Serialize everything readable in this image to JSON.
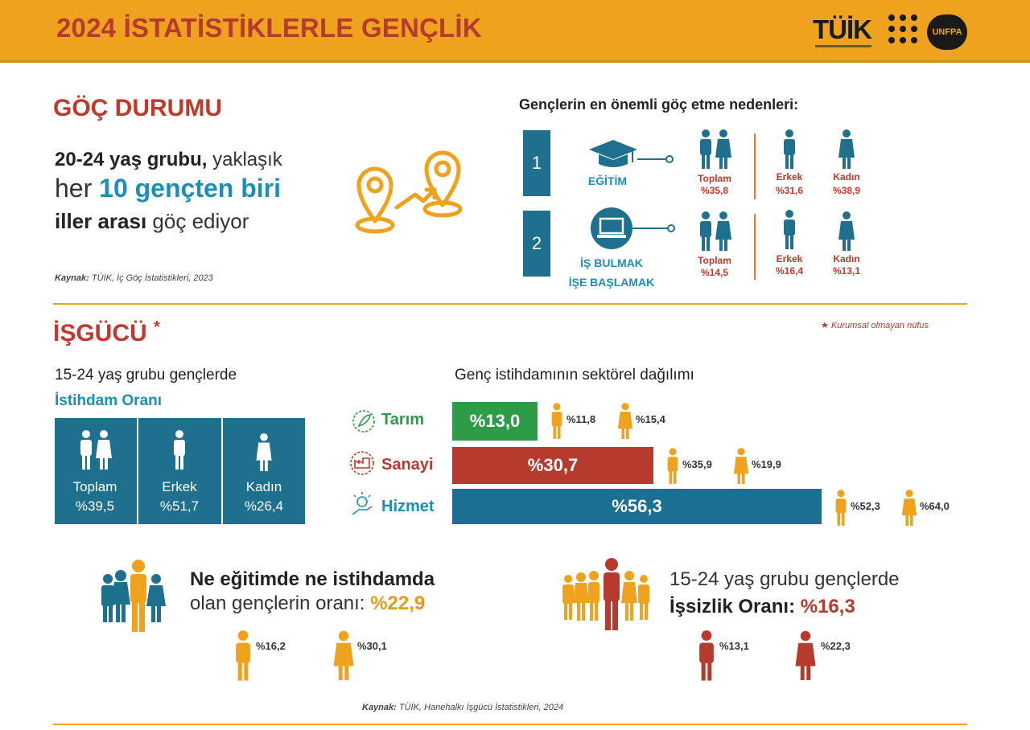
{
  "header": {
    "title": "2024 İSTATİSTİKLERLE GENÇLİK",
    "logo_tuik": "TÜİK",
    "logo_unfpa": "UNFPA"
  },
  "colors": {
    "header_bg": "#eea21e",
    "title_red": "#c0392b",
    "accent_blue": "#1f6f8f",
    "highlight_blue": "#1b8fb8",
    "bar_green": "#2e9b46",
    "bar_red": "#b73a2e",
    "bar_blue": "#1b6f92",
    "orange": "#e69a1c"
  },
  "migration": {
    "title": "GÖÇ DURUMU",
    "line1_bold": "20-24 yaş grubu,",
    "line1_rest": " yaklaşık",
    "line2_pre": "her ",
    "line2_bold": "10 gençten biri",
    "line3_bold": "iller arası",
    "line3_rest": " göç ediyor",
    "source_label": "Kaynak:",
    "source_text": " TÜİK, İç Göç İstatistikleri, 2023",
    "reasons_title": "Gençlerin en önemli göç etme nedenleri:",
    "reasons": [
      {
        "num": "1",
        "label_line1": "EĞİTİM",
        "label_line2": "",
        "total_label": "Toplam",
        "total_value": "%35,8",
        "male_label": "Erkek",
        "male_value": "%31,6",
        "female_label": "Kadın",
        "female_value": "%38,9"
      },
      {
        "num": "2",
        "label_line1": "İŞ BULMAK",
        "label_line2": "İŞE BAŞLAMAK",
        "total_label": "Toplam",
        "total_value": "%14,5",
        "male_label": "Erkek",
        "male_value": "%16,4",
        "female_label": "Kadın",
        "female_value": "%13,1"
      }
    ]
  },
  "labor": {
    "title": "İŞGÜCÜ",
    "star": "*",
    "note": "Kurumsal olmayan nüfus",
    "emp_line1": "15-24 yaş grubu gençlerde",
    "emp_line2": "İstihdam Oranı",
    "emp_cells": [
      {
        "label": "Toplam",
        "value": "%39,5"
      },
      {
        "label": "Erkek",
        "value": "%51,7"
      },
      {
        "label": "Kadın",
        "value": "%26,4"
      }
    ],
    "sector_title": "Genç istihdamının sektörel dağılımı",
    "sectors": [
      {
        "label": "Tarım",
        "share": 13.0,
        "value": "%13,0",
        "male": "%11,8",
        "female": "%15,4",
        "color": "#2e9b46",
        "label_color": "#2e9b46"
      },
      {
        "label": "Sanayi",
        "share": 30.7,
        "value": "%30,7",
        "male": "%35,9",
        "female": "%19,9",
        "color": "#b73a2e",
        "label_color": "#b73a2e"
      },
      {
        "label": "Hizmet",
        "share": 56.3,
        "value": "%56,3",
        "male": "%52,3",
        "female": "%64,0",
        "color": "#1b6f92",
        "label_color": "#1b8fb8"
      }
    ],
    "neet_line1": "Ne eğitimde ne istihdamda",
    "neet_line2_pre": "olan gençlerin oranı: ",
    "neet_value": "%22,9",
    "neet_male": "%16,2",
    "neet_female": "%30,1",
    "unemp_line1": "15-24 yaş grubu gençlerde",
    "unemp_line2_pre": "İşsizlik Oranı: ",
    "unemp_value": "%16,3",
    "unemp_male": "%13,1",
    "unemp_female": "%22,3",
    "source_label": "Kaynak:",
    "source_text": " TÜİK, Hanehalkı İşgücü İstatistikleri, 2024"
  }
}
